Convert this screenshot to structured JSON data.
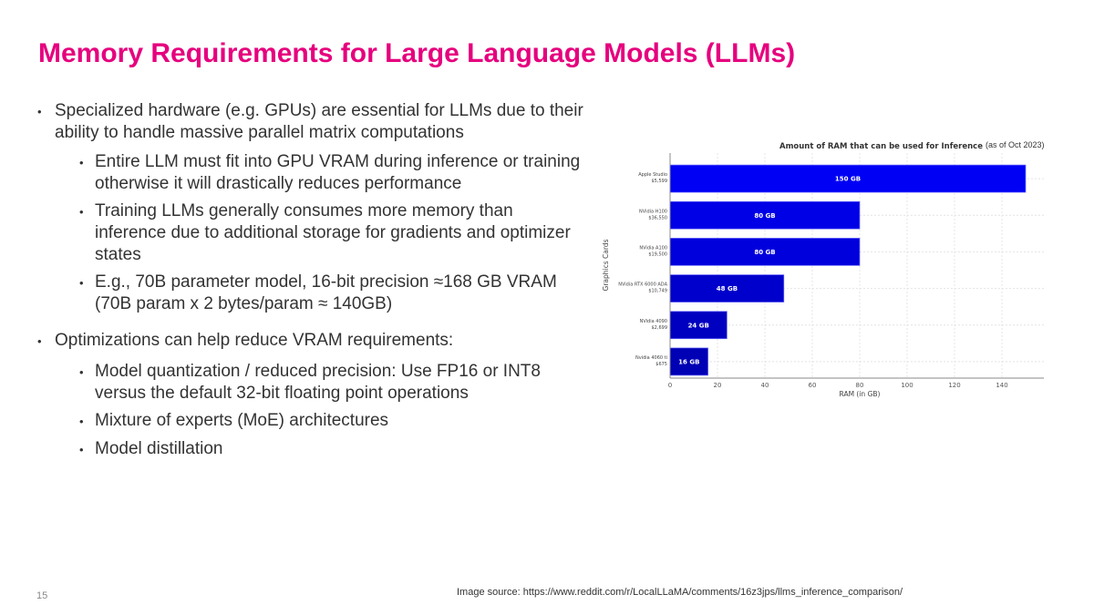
{
  "title": "Memory Requirements for Large Language Models (LLMs)",
  "bullets": [
    {
      "level": 1,
      "text": "Specialized hardware (e.g. GPUs) are essential for LLMs due to their ability to handle massive parallel matrix computations"
    },
    {
      "level": 2,
      "text": "Entire LLM must fit into GPU VRAM during inference or training otherwise it will drastically reduces performance"
    },
    {
      "level": 2,
      "text": "Training LLMs generally consumes more memory than inference due to additional storage for gradients and optimizer states"
    },
    {
      "level": 2,
      "text": "E.g., 70B parameter model, 16-bit precision ≈168 GB VRAM (70B param x 2 bytes/param ≈ 140GB)"
    },
    {
      "level": 1,
      "text": "Optimizations can help reduce VRAM requirements:"
    },
    {
      "level": 2,
      "text": "Model quantization / reduced precision: Use FP16 or INT8 versus the default 32-bit floating point operations"
    },
    {
      "level": 2,
      "text": "Mixture of experts (MoE) architectures"
    },
    {
      "level": 2,
      "text": "Model distillation"
    }
  ],
  "bullet_glyph": "•",
  "page_number": "15",
  "image_source": "Image source: https://www.reddit.com/r/LocalLLaMA/comments/16z3jps/llms_inference_comparison/",
  "chart_data": {
    "type": "bar",
    "orientation": "horizontal",
    "title": "Amount of RAM that can be used for Inference",
    "title_note": "(as of Oct 2023)",
    "xlabel": "RAM (in GB)",
    "ylabel": "Graphics Cards",
    "categories": [
      [
        "Apple Studio",
        "$5,599"
      ],
      [
        "NVidia H100",
        "$36,550"
      ],
      [
        "NVidia A100",
        "$19,500"
      ],
      [
        "NVidia RTX 6000 ADA",
        "$10,749"
      ],
      [
        "NVidia 4090",
        "$2,699"
      ],
      [
        "Nvidia 4060 ti",
        "$675"
      ]
    ],
    "values": [
      150,
      80,
      80,
      48,
      24,
      16
    ],
    "data_labels": [
      "150 GB",
      "80 GB",
      "80 GB",
      "48 GB",
      "24 GB",
      "16 GB"
    ],
    "xticks": [
      0,
      20,
      40,
      60,
      80,
      100,
      120,
      140
    ],
    "xlim": [
      0,
      157
    ],
    "grid": true,
    "colors": [
      "#0000f5",
      "#0000e6",
      "#0000dc",
      "#0000cc",
      "#0000c0",
      "#0000b4"
    ]
  }
}
